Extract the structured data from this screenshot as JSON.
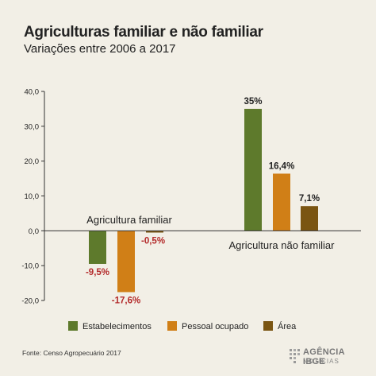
{
  "header": {
    "title": "Agriculturas familiar e não familiar",
    "subtitle": "Variações entre 2006 a 2017"
  },
  "chart_data": {
    "type": "bar",
    "ylim": [
      -20,
      40
    ],
    "yticks": [
      "40,0",
      "30,0",
      "20,0",
      "10,0",
      "0,0",
      "-10,0",
      "-20,0"
    ],
    "ytick_values": [
      40,
      30,
      20,
      10,
      0,
      -10,
      -20
    ],
    "grid": false,
    "legend_position": "bottom",
    "groups": [
      {
        "name": "Agricultura familiar",
        "values": [
          -9.5,
          -17.6,
          -0.5
        ],
        "labels": [
          "-9,5%",
          "-17,6%",
          "-0,5%"
        ]
      },
      {
        "name": "Agricultura não familiar",
        "values": [
          35,
          16.4,
          7.1
        ],
        "labels": [
          "35%",
          "16,4%",
          "7,1%"
        ]
      }
    ],
    "series": [
      {
        "name": "Estabelecimentos",
        "color": "#5e7a2c"
      },
      {
        "name": "Pessoal ocupado",
        "color": "#d07f17"
      },
      {
        "name": "Área",
        "color": "#7a5512"
      }
    ],
    "negative_label_color": "#b32a2a",
    "positive_label_color": "#222222"
  },
  "footer": {
    "source": "Fonte: Censo Agropecuário 2017",
    "logo_main": "AGÊNCIA IBGE",
    "logo_sub": "NOTÍCIAS"
  }
}
